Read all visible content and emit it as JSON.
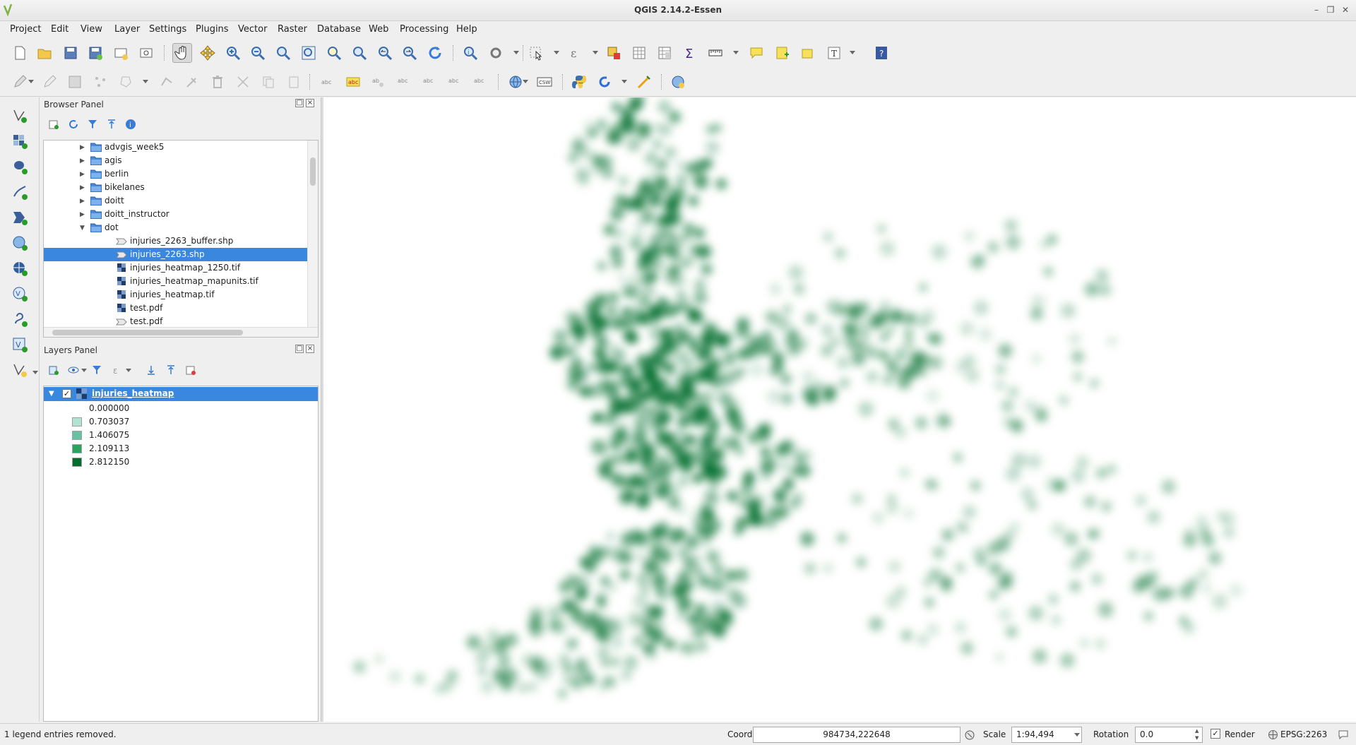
{
  "window": {
    "title": "QGIS 2.14.2-Essen"
  },
  "menus": [
    "Project",
    "Edit",
    "View",
    "Layer",
    "Settings",
    "Plugins",
    "Vector",
    "Raster",
    "Database",
    "Web",
    "Processing",
    "Help"
  ],
  "browser_panel": {
    "title": "Browser Panel",
    "items": [
      {
        "label": "advgis_week5",
        "type": "folder",
        "expanded": false
      },
      {
        "label": "agis",
        "type": "folder",
        "expanded": false
      },
      {
        "label": "berlin",
        "type": "folder",
        "expanded": false
      },
      {
        "label": "bikelanes",
        "type": "folder",
        "expanded": false
      },
      {
        "label": "doitt",
        "type": "folder",
        "expanded": false
      },
      {
        "label": "doitt_instructor",
        "type": "folder",
        "expanded": false
      },
      {
        "label": "dot",
        "type": "folder",
        "expanded": true
      },
      {
        "label": "injuries_2263_buffer.shp",
        "type": "vector"
      },
      {
        "label": "injuries_2263.shp",
        "type": "vector",
        "selected": true
      },
      {
        "label": "injuries_heatmap_1250.tif",
        "type": "raster"
      },
      {
        "label": "injuries_heatmap_mapunits.tif",
        "type": "raster"
      },
      {
        "label": "injuries_heatmap.tif",
        "type": "raster"
      },
      {
        "label": "test.pdf",
        "type": "raster"
      },
      {
        "label": "test.pdf",
        "type": "vector"
      }
    ]
  },
  "layers_panel": {
    "title": "Layers Panel",
    "layer_name": "injuries_heatmap",
    "checked": true,
    "legend": [
      {
        "label": "0.000000",
        "color": "#ffffff"
      },
      {
        "label": "0.703037",
        "color": "#b2e2d4"
      },
      {
        "label": "1.406075",
        "color": "#66c2a4"
      },
      {
        "label": "2.109113",
        "color": "#2ca25f"
      },
      {
        "label": "2.812150",
        "color": "#006d2c"
      }
    ]
  },
  "map": {
    "heat_color": "#006d2c"
  },
  "status": {
    "message": "1 legend entries removed.",
    "coordinate_label": "Coordinate",
    "coordinate_value": "984734,222648",
    "scale_label": "Scale",
    "scale_value": "1:94,494",
    "rotation_label": "Rotation",
    "rotation_value": "0.0",
    "render_label": "Render",
    "crs": "EPSG:2263"
  }
}
